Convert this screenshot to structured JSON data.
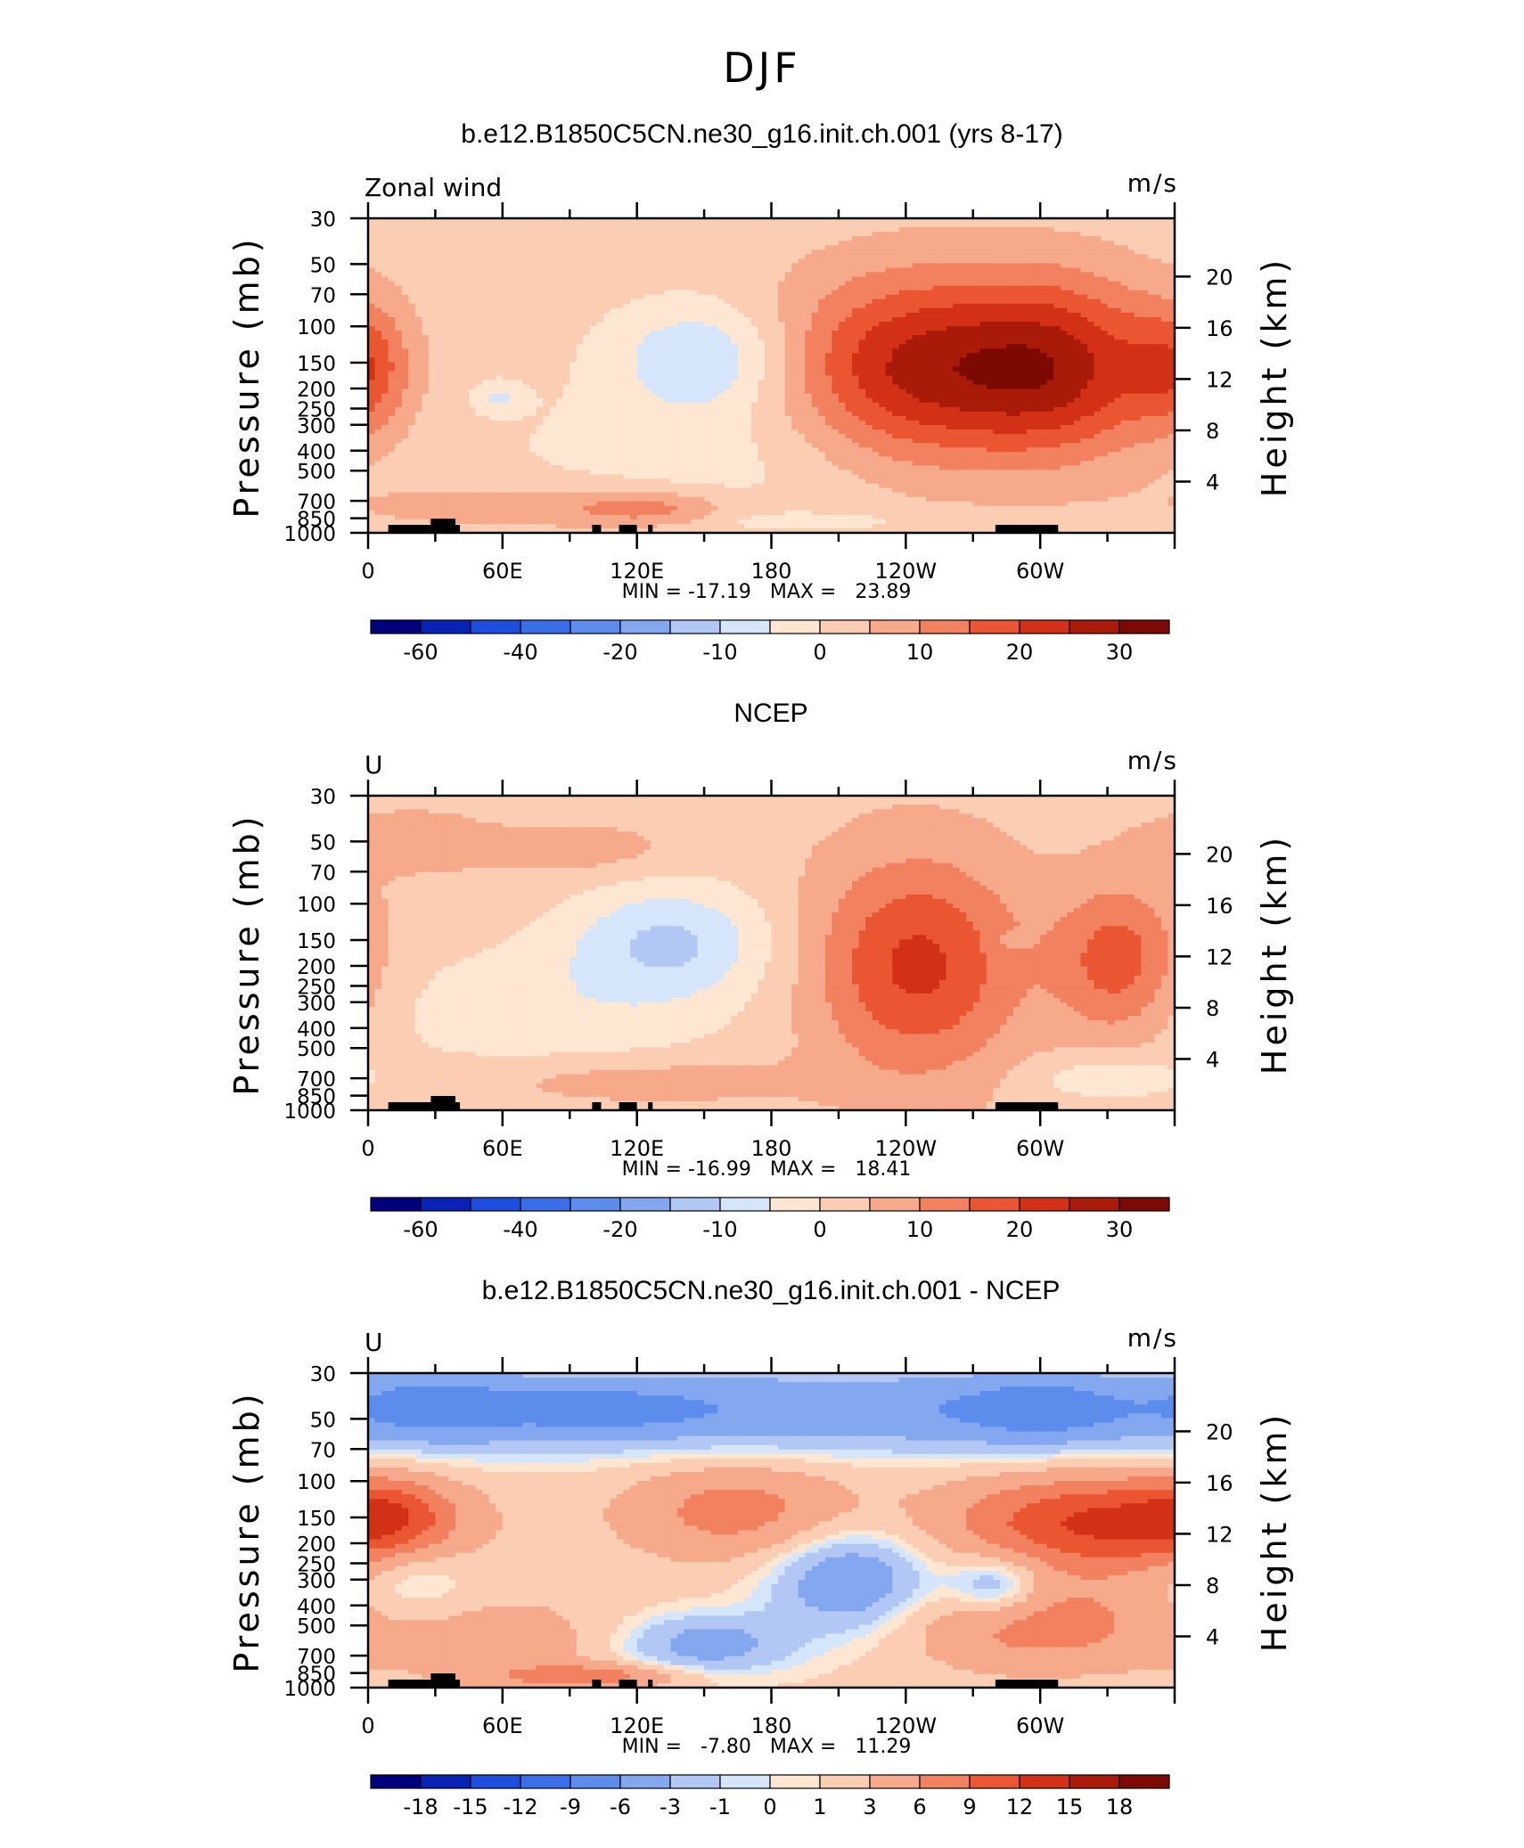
{
  "figure_title": "DJF",
  "chart_data": [
    {
      "type": "heatmap",
      "title": "b.e12.B1850C5CN.ne30_g16.init.ch.001 (yrs 8-17)",
      "corner_left": "Zonal wind",
      "corner_right": "m/s",
      "ylabel": "Pressure (mb)",
      "ylabel_right": "Height (km)",
      "xticks": [
        "0",
        "60E",
        "120E",
        "180",
        "120W",
        "60W"
      ],
      "yticks": [
        "30",
        "50",
        "70",
        "100",
        "150",
        "200",
        "250",
        "300",
        "400",
        "500",
        "700",
        "850",
        "1000"
      ],
      "yticks_right": [
        "20",
        "16",
        "12",
        "8",
        "4"
      ],
      "minmax_text": "MIN = -17.19   MAX =   23.89",
      "min": -17.19,
      "max": 23.89,
      "levels": [
        -70,
        -60,
        -50,
        -40,
        -30,
        -20,
        -15,
        -10,
        -5,
        0,
        5,
        10,
        15,
        20,
        25,
        30
      ],
      "colorbar_labels": [
        "-60",
        "-40",
        "-20",
        "-10",
        "0",
        "10",
        "20",
        "30"
      ],
      "colorbar_label_positions": [
        1,
        3,
        5,
        7,
        9,
        11,
        13,
        15
      ],
      "features": [
        {
          "lon": 150,
          "p": 140,
          "val": -12,
          "rlon": 28,
          "rp": 0.42
        },
        {
          "lon": 58,
          "p": 220,
          "val": -7,
          "rlon": 8,
          "rp": 0.12
        },
        {
          "lon": 243,
          "p": 170,
          "val": 24,
          "rlon": 42,
          "rp": 0.78
        },
        {
          "lon": 310,
          "p": 160,
          "val": 21,
          "rlon": 33,
          "rp": 0.72
        },
        {
          "lon": 0,
          "p": 160,
          "val": 12,
          "rlon": 14,
          "rp": 0.5
        },
        {
          "lon": 125,
          "p": 760,
          "val": 10,
          "rlon": 25,
          "rp": 0.14
        },
        {
          "lon": 60,
          "p": 750,
          "val": 6,
          "rlon": 45,
          "rp": 0.2
        },
        {
          "lon": 200,
          "p": 880,
          "val": -6,
          "rlon": 25,
          "rp": 0.06
        },
        {
          "lon": 180,
          "p": 400,
          "val": -5,
          "rlon": 80,
          "rp": 0.6
        }
      ],
      "base": 2
    },
    {
      "type": "heatmap",
      "title": "NCEP",
      "corner_left": "U",
      "corner_right": "m/s",
      "ylabel": "Pressure (mb)",
      "ylabel_right": "Height (km)",
      "xticks": [
        "0",
        "60E",
        "120E",
        "180",
        "120W",
        "60W"
      ],
      "yticks": [
        "30",
        "50",
        "70",
        "100",
        "150",
        "200",
        "250",
        "300",
        "400",
        "500",
        "700",
        "850",
        "1000"
      ],
      "yticks_right": [
        "20",
        "16",
        "12",
        "8",
        "4"
      ],
      "minmax_text": "MIN = -16.99   MAX =   18.41",
      "min": -16.99,
      "max": 18.41,
      "levels": [
        -70,
        -60,
        -50,
        -40,
        -30,
        -20,
        -15,
        -10,
        -5,
        0,
        5,
        10,
        15,
        20,
        25,
        30
      ],
      "colorbar_labels": [
        "-60",
        "-40",
        "-20",
        "-10",
        "0",
        "10",
        "20",
        "30"
      ],
      "colorbar_label_positions": [
        1,
        3,
        5,
        7,
        9,
        11,
        13,
        15
      ],
      "features": [
        {
          "lon": 135,
          "p": 150,
          "val": -13,
          "rlon": 32,
          "rp": 0.45
        },
        {
          "lon": 245,
          "p": 200,
          "val": 18.4,
          "rlon": 33,
          "rp": 0.85
        },
        {
          "lon": 335,
          "p": 190,
          "val": 15,
          "rlon": 20,
          "rp": 0.6
        },
        {
          "lon": 20,
          "p": 50,
          "val": 5,
          "rlon": 25,
          "rp": 0.25
        },
        {
          "lon": 95,
          "p": 55,
          "val": 5,
          "rlon": 30,
          "rp": 0.2
        },
        {
          "lon": 80,
          "p": 330,
          "val": -6,
          "rlon": 60,
          "rp": 0.55
        },
        {
          "lon": 120,
          "p": 720,
          "val": 6,
          "rlon": 50,
          "rp": 0.18
        },
        {
          "lon": 330,
          "p": 700,
          "val": -7,
          "rlon": 25,
          "rp": 0.18
        },
        {
          "lon": 285,
          "p": 150,
          "val": -3,
          "rlon": 6,
          "rp": 0.08
        }
      ],
      "base": 3
    },
    {
      "type": "heatmap",
      "title": "b.e12.B1850C5CN.ne30_g16.init.ch.001 - NCEP",
      "corner_left": "U",
      "corner_right": "m/s",
      "ylabel": "Pressure (mb)",
      "ylabel_right": "Height (km)",
      "xticks": [
        "0",
        "60E",
        "120E",
        "180",
        "120W",
        "60W"
      ],
      "yticks": [
        "30",
        "50",
        "70",
        "100",
        "150",
        "200",
        "250",
        "300",
        "400",
        "500",
        "700",
        "850",
        "1000"
      ],
      "yticks_right": [
        "20",
        "16",
        "12",
        "8",
        "4"
      ],
      "minmax_text": "MIN =   -7.80   MAX =   11.29",
      "min": -7.8,
      "max": 11.29,
      "levels": [
        -21,
        -18,
        -15,
        -12,
        -9,
        -6,
        -3,
        -1,
        0,
        1,
        3,
        6,
        9,
        12,
        15,
        18,
        21
      ],
      "colorbar_labels": [
        "-18",
        "-15",
        "-12",
        "-9",
        "-6",
        "-3",
        "-1",
        "0",
        "1",
        "3",
        "6",
        "9",
        "12",
        "15",
        "18"
      ],
      "colorbar_label_positions": [
        1,
        2,
        3,
        4,
        5,
        6,
        7,
        8,
        9,
        10,
        11,
        12,
        13,
        14,
        15
      ],
      "features": [
        {
          "lon": 180,
          "p": 45,
          "val": -7,
          "rlon": 360,
          "rp": 0.35
        },
        {
          "lon": 30,
          "p": 42,
          "val": -3.5,
          "rlon": 25,
          "rp": 0.3
        },
        {
          "lon": 105,
          "p": 45,
          "val": -2.5,
          "rlon": 30,
          "rp": 0.2
        },
        {
          "lon": 300,
          "p": 45,
          "val": -3.5,
          "rlon": 25,
          "rp": 0.3
        },
        {
          "lon": 325,
          "p": 160,
          "val": 11,
          "rlon": 45,
          "rp": 0.38
        },
        {
          "lon": 165,
          "p": 140,
          "val": 6,
          "rlon": 35,
          "rp": 0.38
        },
        {
          "lon": 10,
          "p": 150,
          "val": 6,
          "rlon": 20,
          "rp": 0.3
        },
        {
          "lon": 215,
          "p": 300,
          "val": -7.5,
          "rlon": 25,
          "rp": 0.4
        },
        {
          "lon": 150,
          "p": 620,
          "val": -6,
          "rlon": 28,
          "rp": 0.25
        },
        {
          "lon": 60,
          "p": 600,
          "val": 3,
          "rlon": 40,
          "rp": 0.35
        },
        {
          "lon": 20,
          "p": 300,
          "val": -3,
          "rlon": 18,
          "rp": 0.3
        },
        {
          "lon": 280,
          "p": 320,
          "val": -6,
          "rlon": 15,
          "rp": 0.25
        },
        {
          "lon": 300,
          "p": 500,
          "val": 6,
          "rlon": 40,
          "rp": 0.35
        },
        {
          "lon": 100,
          "p": 880,
          "val": 6,
          "rlon": 30,
          "rp": 0.1
        }
      ],
      "base": 1.5
    }
  ],
  "colors": {
    "palette": [
      "#00007c",
      "#0722b4",
      "#1e4ede",
      "#3a6ee9",
      "#5c8ded",
      "#84a8ef",
      "#b2c7f4",
      "#d6e6fa",
      "#fee7d2",
      "#fbcdb3",
      "#f7a98b",
      "#f2815f",
      "#ea5632",
      "#d33116",
      "#aa1a08",
      "#7c0a03"
    ],
    "diff_palette": [
      "#00007c",
      "#0722b4",
      "#1e4ede",
      "#3a6ee9",
      "#5c8ded",
      "#84a8ef",
      "#b2c7f4",
      "#d6e6fa",
      "#fee7d2",
      "#fbcdb3",
      "#f7a98b",
      "#f2815f",
      "#ea5632",
      "#d33116",
      "#aa1a08",
      "#7c0a03"
    ],
    "topography": "#000000"
  },
  "topography": [
    {
      "lon0": 9,
      "lon1": 41
    },
    {
      "lon0": 28,
      "lon1": 39
    },
    {
      "lon0": 100,
      "lon1": 104
    },
    {
      "lon0": 112,
      "lon1": 120
    },
    {
      "lon0": 125,
      "lon1": 127
    },
    {
      "lon0": 280,
      "lon1": 308
    }
  ]
}
